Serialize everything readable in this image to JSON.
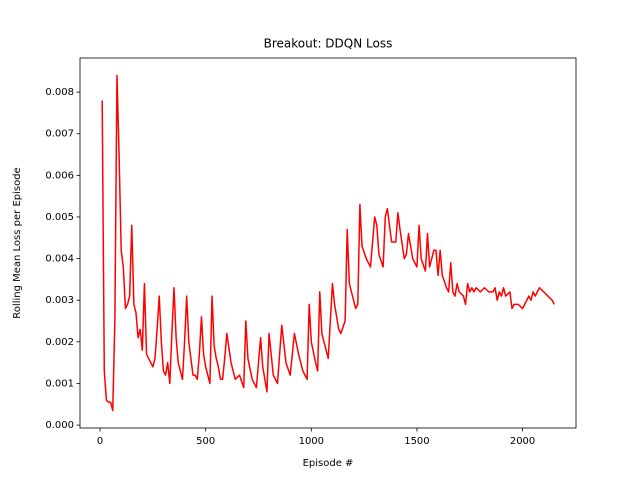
{
  "chart_data": {
    "type": "line",
    "title": "Breakout: DDQN Loss",
    "xlabel": "Episode #",
    "ylabel": "Rolling Mean Loss per Episode",
    "color": "#ff0000",
    "x": [
      10,
      20,
      30,
      40,
      50,
      60,
      70,
      80,
      90,
      100,
      110,
      120,
      130,
      140,
      150,
      160,
      170,
      180,
      190,
      200,
      210,
      220,
      240,
      250,
      260,
      270,
      280,
      290,
      300,
      310,
      320,
      330,
      340,
      350,
      360,
      370,
      380,
      390,
      400,
      410,
      420,
      430,
      440,
      450,
      460,
      470,
      480,
      490,
      500,
      510,
      520,
      530,
      540,
      550,
      560,
      570,
      580,
      590,
      600,
      620,
      640,
      660,
      680,
      690,
      700,
      720,
      740,
      760,
      770,
      780,
      790,
      800,
      820,
      840,
      860,
      880,
      900,
      920,
      940,
      960,
      980,
      990,
      1000,
      1020,
      1030,
      1040,
      1050,
      1070,
      1080,
      1100,
      1110,
      1130,
      1140,
      1160,
      1170,
      1180,
      1200,
      1210,
      1220,
      1230,
      1240,
      1260,
      1280,
      1300,
      1310,
      1320,
      1340,
      1350,
      1360,
      1380,
      1400,
      1410,
      1420,
      1440,
      1450,
      1460,
      1480,
      1500,
      1510,
      1520,
      1540,
      1550,
      1560,
      1580,
      1590,
      1600,
      1610,
      1620,
      1640,
      1650,
      1660,
      1670,
      1680,
      1690,
      1700,
      1720,
      1730,
      1740,
      1750,
      1760,
      1770,
      1780,
      1800,
      1820,
      1840,
      1860,
      1870,
      1880,
      1890,
      1900,
      1910,
      1920,
      1940,
      1950,
      1960,
      1980,
      2000,
      2020,
      2030,
      2040,
      2050,
      2060,
      2080,
      2100,
      2120,
      2140,
      2150
    ],
    "values": [
      0.0078,
      0.0013,
      0.0006,
      0.00055,
      0.00055,
      0.00035,
      0.0025,
      0.0084,
      0.0065,
      0.0042,
      0.0038,
      0.0028,
      0.0029,
      0.0031,
      0.0048,
      0.0029,
      0.0027,
      0.0021,
      0.0023,
      0.0018,
      0.0034,
      0.0017,
      0.0015,
      0.0014,
      0.0016,
      0.0023,
      0.0031,
      0.002,
      0.0013,
      0.0012,
      0.0015,
      0.001,
      0.0022,
      0.0033,
      0.0021,
      0.0015,
      0.0013,
      0.0011,
      0.002,
      0.0031,
      0.002,
      0.0016,
      0.0012,
      0.0012,
      0.0011,
      0.0017,
      0.0026,
      0.0017,
      0.0014,
      0.0012,
      0.001,
      0.0031,
      0.0019,
      0.0016,
      0.0014,
      0.0011,
      0.0011,
      0.0016,
      0.0022,
      0.0015,
      0.0011,
      0.0012,
      0.0009,
      0.0025,
      0.0016,
      0.0011,
      0.0009,
      0.0021,
      0.0014,
      0.0011,
      0.0008,
      0.0022,
      0.0012,
      0.001,
      0.0024,
      0.0015,
      0.0012,
      0.0022,
      0.0017,
      0.0013,
      0.0011,
      0.0029,
      0.002,
      0.0015,
      0.0013,
      0.0032,
      0.0022,
      0.0018,
      0.0016,
      0.0034,
      0.0029,
      0.0023,
      0.0022,
      0.0025,
      0.0047,
      0.0034,
      0.003,
      0.0028,
      0.0029,
      0.0053,
      0.0043,
      0.004,
      0.0038,
      0.005,
      0.0048,
      0.0041,
      0.0038,
      0.005,
      0.0052,
      0.0044,
      0.0044,
      0.0051,
      0.0047,
      0.004,
      0.0041,
      0.0046,
      0.004,
      0.0038,
      0.0048,
      0.004,
      0.0037,
      0.0046,
      0.0038,
      0.0042,
      0.0042,
      0.0036,
      0.0042,
      0.0036,
      0.0033,
      0.0032,
      0.0039,
      0.0032,
      0.0031,
      0.0034,
      0.0032,
      0.0031,
      0.0029,
      0.0034,
      0.0032,
      0.0033,
      0.0032,
      0.0033,
      0.0032,
      0.0033,
      0.0032,
      0.0032,
      0.0033,
      0.003,
      0.0032,
      0.0031,
      0.0033,
      0.0031,
      0.0032,
      0.0028,
      0.0029,
      0.0029,
      0.0028,
      0.003,
      0.0031,
      0.003,
      0.0032,
      0.0031,
      0.0033,
      0.0032,
      0.0031,
      0.003,
      0.0029
    ],
    "xlim": [
      -95,
      2253
    ],
    "ylim": [
      -7e-05,
      0.00882
    ],
    "xticks": [
      0,
      500,
      1000,
      1500,
      2000
    ],
    "yticks": [
      {
        "value": 0,
        "label": "0.000"
      },
      {
        "value": 0.001,
        "label": "0.001"
      },
      {
        "value": 0.002,
        "label": "0.002"
      },
      {
        "value": 0.003,
        "label": "0.003"
      },
      {
        "value": 0.004,
        "label": "0.004"
      },
      {
        "value": 0.005,
        "label": "0.005"
      },
      {
        "value": 0.006,
        "label": "0.006"
      },
      {
        "value": 0.007,
        "label": "0.007"
      },
      {
        "value": 0.008,
        "label": "0.008"
      }
    ],
    "grid": false
  }
}
